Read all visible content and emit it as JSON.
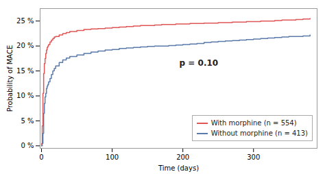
{
  "chart_data": {
    "type": "step",
    "xlabel": "Time (days)",
    "ylabel": "Probability of MACE",
    "xlim": [
      -2,
      390
    ],
    "ylim": [
      -0.005,
      0.275
    ],
    "xticks": [
      0,
      100,
      200,
      300
    ],
    "yticks": [
      {
        "value": 0,
        "label": "0 %"
      },
      {
        "value": 0.05,
        "label": "5 %"
      },
      {
        "value": 0.1,
        "label": "10 %"
      },
      {
        "value": 0.15,
        "label": "15 %"
      },
      {
        "value": 0.2,
        "label": "20 %"
      },
      {
        "value": 0.25,
        "label": "25 %"
      }
    ],
    "grid": false,
    "legend": "lower right",
    "annotations": [
      {
        "text": "p = 0.10",
        "x": 195,
        "y": 0.165
      }
    ],
    "series": [
      {
        "name": "With morphine (n = 554)",
        "color": "#e05555",
        "x": [
          0,
          0.3,
          1,
          2,
          3,
          4,
          5,
          6,
          7,
          8,
          9,
          10,
          12,
          14,
          16,
          18,
          20,
          25,
          30,
          35,
          40,
          50,
          60,
          70,
          80,
          90,
          100,
          110,
          120,
          130,
          140,
          150,
          160,
          170,
          180,
          190,
          200,
          210,
          220,
          230,
          240,
          250,
          260,
          270,
          280,
          290,
          300,
          310,
          320,
          330,
          340,
          350,
          360,
          370,
          380
        ],
        "values": [
          0.0,
          0.005,
          0.04,
          0.105,
          0.145,
          0.165,
          0.175,
          0.185,
          0.192,
          0.197,
          0.2,
          0.203,
          0.208,
          0.212,
          0.215,
          0.218,
          0.219,
          0.222,
          0.225,
          0.227,
          0.229,
          0.231,
          0.233,
          0.234,
          0.235,
          0.236,
          0.237,
          0.238,
          0.239,
          0.24,
          0.241,
          0.241,
          0.242,
          0.243,
          0.243,
          0.244,
          0.244,
          0.245,
          0.245,
          0.246,
          0.246,
          0.247,
          0.247,
          0.248,
          0.248,
          0.249,
          0.249,
          0.25,
          0.25,
          0.251,
          0.252,
          0.252,
          0.253,
          0.254,
          0.255
        ]
      },
      {
        "name": "Without morphine (n = 413)",
        "color": "#5a7aaa",
        "x": [
          0,
          0.5,
          1,
          2,
          3,
          4,
          5,
          6,
          7,
          8,
          9,
          10,
          12,
          14,
          16,
          18,
          20,
          25,
          30,
          35,
          40,
          50,
          60,
          70,
          80,
          90,
          100,
          110,
          120,
          130,
          140,
          150,
          160,
          170,
          180,
          190,
          200,
          210,
          220,
          230,
          240,
          250,
          260,
          270,
          280,
          290,
          300,
          310,
          320,
          330,
          340,
          350,
          360,
          370,
          380
        ],
        "values": [
          0.0,
          0.0,
          0.005,
          0.025,
          0.065,
          0.085,
          0.098,
          0.105,
          0.115,
          0.12,
          0.123,
          0.128,
          0.135,
          0.143,
          0.15,
          0.155,
          0.16,
          0.167,
          0.172,
          0.176,
          0.179,
          0.182,
          0.185,
          0.188,
          0.19,
          0.192,
          0.193,
          0.195,
          0.196,
          0.197,
          0.198,
          0.199,
          0.2,
          0.2,
          0.201,
          0.202,
          0.203,
          0.204,
          0.205,
          0.207,
          0.208,
          0.209,
          0.21,
          0.211,
          0.212,
          0.213,
          0.214,
          0.215,
          0.216,
          0.217,
          0.218,
          0.219,
          0.219,
          0.22,
          0.222
        ]
      }
    ]
  }
}
